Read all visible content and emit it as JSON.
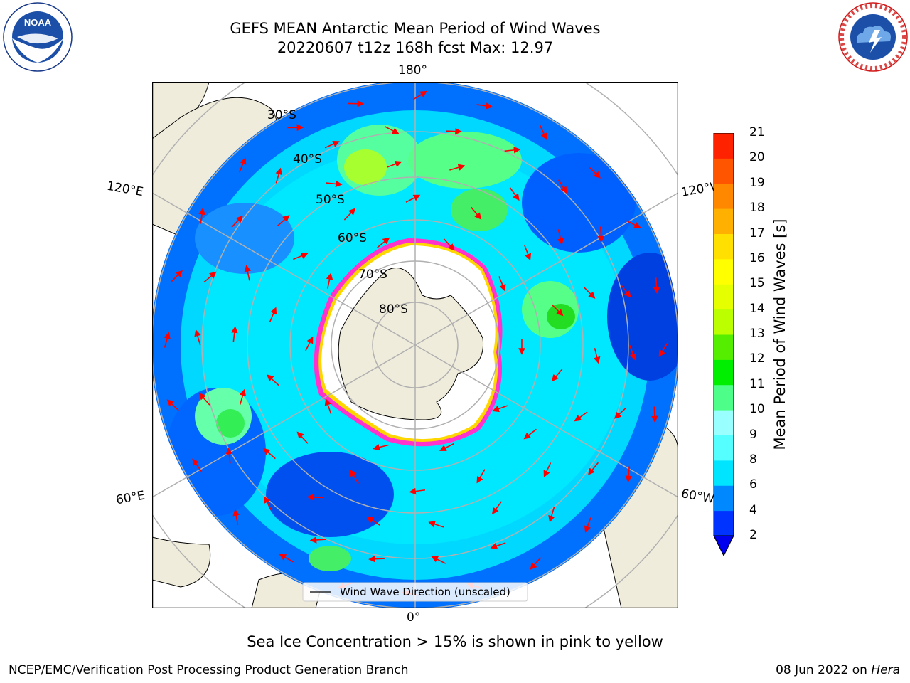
{
  "title": {
    "line1": "GEFS MEAN Antarctic Mean Period of Wind Waves",
    "line2": "20220607 t12z 168h fcst   Max: 12.97"
  },
  "logos": {
    "left": {
      "name": "noaa-logo",
      "text": "NOAA",
      "ring_text": "NATIONAL OCEANIC AND ATMOSPHERIC ADMINISTRATION · U.S. DEPARTMENT OF COMMERCE"
    },
    "right": {
      "name": "nws-logo",
      "ring_text": "NATIONAL WEATHER SERVICE"
    }
  },
  "map": {
    "projection": "south-polar-stereographic",
    "longitude_labels": {
      "top": "180°",
      "bottom": "0°",
      "upper_left": "120°E",
      "upper_right": "120°W",
      "lower_left": "60°E",
      "lower_right": "60°W"
    },
    "latitude_labels": [
      "30°S",
      "40°S",
      "50°S",
      "60°S",
      "70°S",
      "80°S"
    ],
    "legend": "Wind Wave Direction (unscaled)",
    "colors": {
      "land": "#efecdc",
      "ice_free_open": "#ffffff",
      "gridline": "#b0b0b0",
      "arrow": "#ff0000",
      "ice_edge_pink": "#ff33cc",
      "ice_edge_yellow": "#ffd700"
    }
  },
  "colorbar": {
    "label": "Mean Period of Wind Waves [s]",
    "ticks": [
      "21",
      "20",
      "19",
      "18",
      "17",
      "16",
      "15",
      "14",
      "13",
      "12",
      "11",
      "10",
      "9",
      "8",
      "6",
      "4",
      "2"
    ],
    "bands": [
      "#0033ff",
      "#0088ff",
      "#00e5ff",
      "#55ffff",
      "#99ffff",
      "#4dff88",
      "#00ee00",
      "#55ee00",
      "#bbff00",
      "#e6ff00",
      "#ffff00",
      "#ffe000",
      "#ffb000",
      "#ff8800",
      "#ff5500",
      "#ff2200",
      "#ff0000"
    ],
    "extend_color": "#0000ee"
  },
  "note": "Sea Ice Concentration > 15% is shown in pink to yellow",
  "footer": {
    "left": "NCEP/EMC/Verification Post Processing Product Generation Branch",
    "right_date": "08 Jun 2022 on ",
    "right_machine": "Hera"
  }
}
